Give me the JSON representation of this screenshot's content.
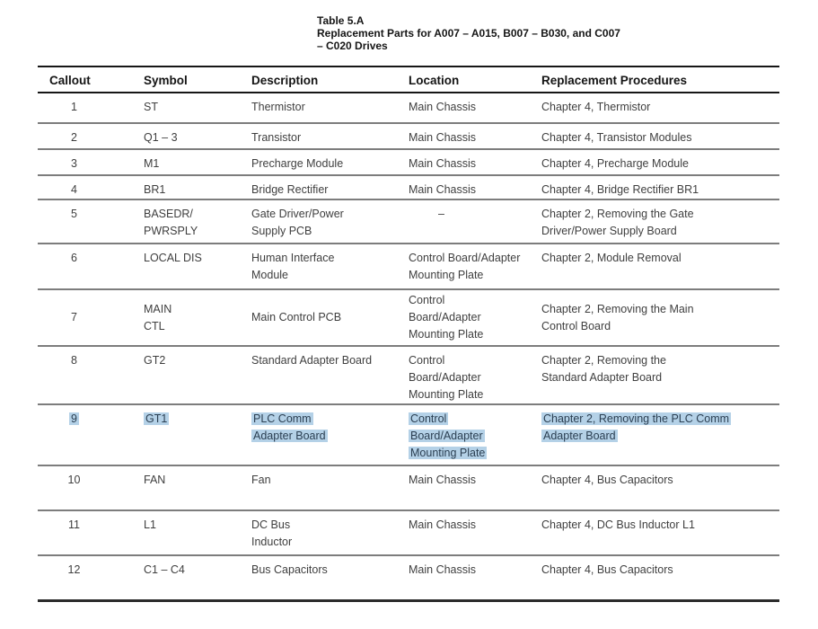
{
  "title": {
    "line1": "Table 5.A",
    "line2": "Replacement Parts for A007 – A015, B007 – B030, and C007",
    "line3": "– C020 Drives"
  },
  "table": {
    "columns": [
      "Callout",
      "Symbol",
      "Description",
      "Location",
      "Replacement Procedures"
    ],
    "highlight_color": "#b4d1e7",
    "rows": [
      {
        "callout": "1",
        "symbol": [
          "ST"
        ],
        "description": [
          "Thermistor"
        ],
        "location": [
          "Main Chassis"
        ],
        "procedures": [
          "Chapter 4, Thermistor"
        ],
        "highlighted": false
      },
      {
        "callout": "2",
        "symbol": [
          "Q1 – 3"
        ],
        "description": [
          "Transistor"
        ],
        "location": [
          "Main Chassis"
        ],
        "procedures": [
          "Chapter 4, Transistor Modules"
        ],
        "highlighted": false
      },
      {
        "callout": "3",
        "symbol": [
          "M1"
        ],
        "description": [
          "Precharge Module"
        ],
        "location": [
          "Main Chassis"
        ],
        "procedures": [
          "Chapter 4, Precharge Module"
        ],
        "highlighted": false
      },
      {
        "callout": "4",
        "symbol": [
          "BR1"
        ],
        "description": [
          "Bridge Rectifier"
        ],
        "location": [
          "Main Chassis"
        ],
        "procedures": [
          "Chapter 4, Bridge Rectifier BR1"
        ],
        "highlighted": false
      },
      {
        "callout": "5",
        "symbol": [
          "BASEDR/",
          "PWRSPLY"
        ],
        "description": [
          "Gate Driver/Power",
          "Supply PCB"
        ],
        "location": [
          "–"
        ],
        "procedures": [
          "Chapter 2, Removing the Gate",
          "Driver/Power Supply Board"
        ],
        "highlighted": false
      },
      {
        "callout": "6",
        "symbol": [
          "LOCAL DIS"
        ],
        "description": [
          "Human Interface",
          "Module"
        ],
        "location": [
          "Control Board/Adapter",
          "Mounting Plate"
        ],
        "procedures": [
          "Chapter 2, Module Removal"
        ],
        "highlighted": false
      },
      {
        "callout": "7",
        "symbol": [
          "MAIN",
          "CTL"
        ],
        "description": [
          "Main Control PCB"
        ],
        "location": [
          "Control",
          "Board/Adapter",
          "Mounting Plate"
        ],
        "procedures": [
          "Chapter 2, Removing the Main",
          "Control Board"
        ],
        "highlighted": false
      },
      {
        "callout": "8",
        "symbol": [
          "GT2"
        ],
        "description": [
          "Standard Adapter Board"
        ],
        "location": [
          "Control",
          "Board/Adapter",
          "Mounting Plate"
        ],
        "procedures": [
          "Chapter 2, Removing the",
          "Standard Adapter Board"
        ],
        "highlighted": false
      },
      {
        "callout": "9",
        "symbol": [
          "GT1"
        ],
        "description": [
          "PLC Comm",
          "Adapter Board"
        ],
        "location": [
          "Control",
          "Board/Adapter",
          "Mounting Plate"
        ],
        "procedures": [
          "Chapter 2, Removing the PLC Comm",
          "Adapter Board"
        ],
        "highlighted": true
      },
      {
        "callout": "10",
        "symbol": [
          "FAN"
        ],
        "description": [
          "Fan"
        ],
        "location": [
          "Main Chassis"
        ],
        "procedures": [
          "Chapter 4, Bus Capacitors"
        ],
        "highlighted": false
      },
      {
        "callout": "11",
        "symbol": [
          "L1"
        ],
        "description": [
          "DC Bus",
          "Inductor"
        ],
        "location": [
          "Main Chassis"
        ],
        "procedures": [
          "Chapter 4, DC Bus Inductor L1"
        ],
        "highlighted": false
      },
      {
        "callout": "12",
        "symbol": [
          "C1 – C4"
        ],
        "description": [
          "Bus Capacitors"
        ],
        "location": [
          "Main Chassis"
        ],
        "procedures": [
          "Chapter 4, Bus Capacitors"
        ],
        "highlighted": false
      }
    ]
  }
}
